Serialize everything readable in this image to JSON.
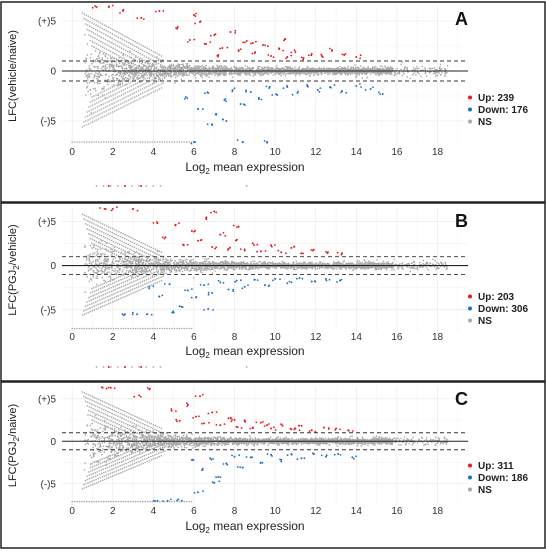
{
  "figure": {
    "panels": [
      {
        "letter": "A",
        "ylabel_main": "LFC(vehicle/naive)",
        "ylabel_sub": "",
        "ylabel_tail": "",
        "xlabel_main": "Log",
        "xlabel_sub": "2",
        "xlabel_tail": " mean expression",
        "legend": [
          {
            "label": "Up: 239",
            "color": "#e41a1c"
          },
          {
            "label": "Down: 176",
            "color": "#1f6fc5"
          },
          {
            "label": "NS",
            "color": "#a8a8a8"
          }
        ]
      },
      {
        "letter": "B",
        "ylabel_main": "LFC(PGJ",
        "ylabel_sub": "2",
        "ylabel_tail": "/vehicle)",
        "xlabel_main": "Log",
        "xlabel_sub": "2",
        "xlabel_tail": " mean expression",
        "legend": [
          {
            "label": "Up: 203",
            "color": "#e41a1c"
          },
          {
            "label": "Down: 306",
            "color": "#1f6fc5"
          },
          {
            "label": "NS",
            "color": "#a8a8a8"
          }
        ]
      },
      {
        "letter": "C",
        "ylabel_main": "LFC(PGJ",
        "ylabel_sub": "2",
        "ylabel_tail": "/naive)",
        "xlabel_main": "Log",
        "xlabel_sub": "2",
        "xlabel_tail": " mean expression",
        "legend": [
          {
            "label": "Up: 311",
            "color": "#e41a1c"
          },
          {
            "label": "Down: 186",
            "color": "#1f6fc5"
          },
          {
            "label": "NS",
            "color": "#a8a8a8"
          }
        ]
      }
    ]
  },
  "chart_data": [
    {
      "type": "scatter",
      "panel": "A",
      "xlabel": "Log2 mean expression",
      "ylabel": "LFC(vehicle/naive)",
      "x_ticks": [
        0,
        2,
        4,
        6,
        8,
        10,
        12,
        14,
        16,
        18
      ],
      "y_ticks": [
        "(-)5",
        "0",
        "(+)5"
      ],
      "xlim": [
        -0.5,
        19.5
      ],
      "ylim": [
        -7.5,
        6.5
      ],
      "threshold_lines": [
        1,
        -1
      ],
      "grid": true,
      "legend_position": "right",
      "counts": {
        "up": 239,
        "down": 176
      },
      "series": [
        {
          "name": "Up",
          "color": "#e41a1c",
          "points": [
            [
              5.2,
              4.4
            ],
            [
              5.8,
              3.1
            ],
            [
              6.3,
              4.9
            ],
            [
              6.6,
              2.7
            ],
            [
              7.0,
              3.6
            ],
            [
              7.4,
              2.3
            ],
            [
              7.8,
              3.9
            ],
            [
              8.2,
              2.0
            ],
            [
              8.6,
              3.0
            ],
            [
              9.0,
              1.8
            ],
            [
              9.4,
              2.6
            ],
            [
              9.8,
              1.5
            ],
            [
              10.2,
              2.2
            ],
            [
              10.6,
              1.4
            ],
            [
              11.0,
              1.9
            ],
            [
              11.4,
              1.3
            ],
            [
              11.8,
              1.7
            ],
            [
              12.3,
              1.5
            ],
            [
              12.8,
              2.1
            ],
            [
              13.4,
              1.6
            ],
            [
              14.0,
              1.4
            ],
            [
              3.4,
              5.3
            ],
            [
              4.3,
              6.0
            ],
            [
              6.0,
              5.6
            ],
            [
              1.8,
              6.4
            ],
            [
              2.5,
              6.0
            ],
            [
              1.2,
              6.4
            ],
            [
              8.9,
              2.8
            ],
            [
              10.5,
              3.2
            ],
            [
              7.2,
              1.6
            ]
          ]
        },
        {
          "name": "Down",
          "color": "#1f6fc5",
          "points": [
            [
              5.6,
              -2.6
            ],
            [
              6.2,
              -3.8
            ],
            [
              6.7,
              -2.2
            ],
            [
              7.1,
              -4.3
            ],
            [
              7.5,
              -2.9
            ],
            [
              7.9,
              -1.9
            ],
            [
              8.3,
              -3.3
            ],
            [
              8.8,
              -2.1
            ],
            [
              9.2,
              -2.8
            ],
            [
              9.7,
              -1.7
            ],
            [
              10.1,
              -2.4
            ],
            [
              10.6,
              -1.6
            ],
            [
              11.1,
              -2.2
            ],
            [
              11.6,
              -1.5
            ],
            [
              12.1,
              -1.9
            ],
            [
              12.7,
              -1.6
            ],
            [
              13.3,
              -2.0
            ],
            [
              14.0,
              -1.5
            ],
            [
              14.7,
              -1.8
            ],
            [
              15.3,
              -2.3
            ],
            [
              6.9,
              -5.4
            ],
            [
              7.6,
              -5.0
            ],
            [
              6.0,
              -7.1
            ],
            [
              8.4,
              -7.1
            ],
            [
              9.6,
              -7.1
            ]
          ]
        },
        {
          "name": "NS",
          "color": "#a8a8a8",
          "points": [
            [
              6.0,
              0.3
            ],
            [
              8.0,
              -0.2
            ],
            [
              10.0,
              0.1
            ],
            [
              12.0,
              -0.1
            ],
            [
              14.0,
              0.2
            ],
            [
              16.0,
              0.0
            ],
            [
              18.0,
              0.0
            ]
          ]
        }
      ]
    },
    {
      "type": "scatter",
      "panel": "B",
      "xlabel": "Log2 mean expression",
      "ylabel": "LFC(PGJ2/vehicle)",
      "x_ticks": [
        0,
        2,
        4,
        6,
        8,
        10,
        12,
        14,
        16,
        18
      ],
      "y_ticks": [
        "(-)5",
        "0",
        "(+)5"
      ],
      "xlim": [
        -0.5,
        19.5
      ],
      "ylim": [
        -7.5,
        6.5
      ],
      "threshold_lines": [
        1,
        -1
      ],
      "grid": true,
      "legend_position": "right",
      "counts": {
        "up": 203,
        "down": 306
      },
      "series": [
        {
          "name": "Up",
          "color": "#e41a1c",
          "points": [
            [
              4.6,
              3.2
            ],
            [
              5.1,
              4.6
            ],
            [
              5.5,
              2.3
            ],
            [
              5.9,
              3.9
            ],
            [
              6.2,
              2.8
            ],
            [
              6.6,
              5.4
            ],
            [
              6.9,
              2.1
            ],
            [
              7.3,
              3.5
            ],
            [
              7.7,
              1.9
            ],
            [
              8.1,
              2.9
            ],
            [
              8.5,
              1.7
            ],
            [
              8.9,
              2.5
            ],
            [
              9.3,
              1.6
            ],
            [
              9.8,
              2.3
            ],
            [
              10.3,
              1.5
            ],
            [
              10.8,
              2.0
            ],
            [
              11.3,
              1.4
            ],
            [
              11.9,
              1.8
            ],
            [
              12.6,
              1.5
            ],
            [
              13.3,
              1.4
            ],
            [
              4.2,
              4.8
            ],
            [
              7.0,
              6.1
            ],
            [
              8.2,
              4.4
            ],
            [
              2.0,
              6.4
            ],
            [
              1.6,
              6.4
            ],
            [
              3.0,
              6.4
            ]
          ]
        },
        {
          "name": "Down",
          "color": "#1f6fc5",
          "points": [
            [
              3.8,
              -2.4
            ],
            [
              4.3,
              -3.5
            ],
            [
              4.8,
              -2.1
            ],
            [
              5.3,
              -4.6
            ],
            [
              5.7,
              -2.8
            ],
            [
              6.1,
              -3.6
            ],
            [
              6.5,
              -2.2
            ],
            [
              6.9,
              -3.1
            ],
            [
              7.3,
              -1.9
            ],
            [
              7.7,
              -2.7
            ],
            [
              8.1,
              -1.7
            ],
            [
              8.5,
              -2.4
            ],
            [
              9.0,
              -1.6
            ],
            [
              9.5,
              -2.2
            ],
            [
              10.0,
              -1.5
            ],
            [
              10.6,
              -2.0
            ],
            [
              11.2,
              -1.4
            ],
            [
              11.8,
              -1.8
            ],
            [
              12.5,
              -1.5
            ],
            [
              13.2,
              -1.7
            ],
            [
              5.0,
              -5.3
            ],
            [
              6.7,
              -4.9
            ],
            [
              2.6,
              -5.5
            ],
            [
              3.2,
              -5.5
            ],
            [
              3.7,
              -5.5
            ]
          ]
        },
        {
          "name": "NS",
          "color": "#a8a8a8",
          "points": [
            [
              6.0,
              0.3
            ],
            [
              8.0,
              -0.2
            ],
            [
              10.0,
              0.1
            ],
            [
              12.0,
              -0.1
            ],
            [
              14.0,
              0.2
            ],
            [
              16.0,
              0.0
            ],
            [
              18.0,
              0.0
            ]
          ]
        }
      ]
    },
    {
      "type": "scatter",
      "panel": "C",
      "xlabel": "Log2 mean expression",
      "ylabel": "LFC(PGJ2/naive)",
      "x_ticks": [
        0,
        2,
        4,
        6,
        8,
        10,
        12,
        14,
        16,
        18
      ],
      "y_ticks": [
        "(-)5",
        "0",
        "(+)5"
      ],
      "xlim": [
        -0.5,
        19.5
      ],
      "ylim": [
        -7.5,
        6.5
      ],
      "threshold_lines": [
        1,
        -1
      ],
      "grid": true,
      "legend_position": "right",
      "counts": {
        "up": 311,
        "down": 186
      },
      "series": [
        {
          "name": "Up",
          "color": "#e41a1c",
          "points": [
            [
              4.9,
              3.6
            ],
            [
              5.3,
              2.4
            ],
            [
              5.7,
              4.3
            ],
            [
              6.1,
              2.9
            ],
            [
              6.5,
              2.1
            ],
            [
              6.9,
              3.4
            ],
            [
              7.3,
              1.9
            ],
            [
              7.7,
              2.7
            ],
            [
              8.1,
              1.7
            ],
            [
              8.5,
              2.4
            ],
            [
              8.9,
              1.6
            ],
            [
              9.3,
              2.2
            ],
            [
              9.8,
              1.5
            ],
            [
              10.3,
              2.0
            ],
            [
              10.8,
              1.4
            ],
            [
              11.3,
              1.8
            ],
            [
              11.8,
              1.3
            ],
            [
              12.4,
              1.6
            ],
            [
              13.0,
              1.5
            ],
            [
              13.6,
              1.3
            ],
            [
              3.3,
              5.4
            ],
            [
              3.8,
              6.1
            ],
            [
              6.3,
              5.3
            ],
            [
              1.5,
              6.3
            ],
            [
              1.9,
              6.3
            ],
            [
              8.0,
              2.5
            ],
            [
              9.6,
              1.9
            ],
            [
              11.0,
              1.5
            ]
          ]
        },
        {
          "name": "Down",
          "color": "#1f6fc5",
          "points": [
            [
              5.9,
              -2.2
            ],
            [
              6.4,
              -3.4
            ],
            [
              6.8,
              -2.0
            ],
            [
              7.2,
              -4.2
            ],
            [
              7.6,
              -2.6
            ],
            [
              8.0,
              -1.8
            ],
            [
              8.4,
              -3.1
            ],
            [
              8.8,
              -1.9
            ],
            [
              9.3,
              -2.5
            ],
            [
              9.8,
              -1.6
            ],
            [
              10.3,
              -2.2
            ],
            [
              10.8,
              -1.5
            ],
            [
              11.3,
              -2.0
            ],
            [
              11.9,
              -1.5
            ],
            [
              12.5,
              -1.8
            ],
            [
              13.1,
              -1.5
            ],
            [
              13.8,
              -1.9
            ],
            [
              7.0,
              -4.9
            ],
            [
              6.2,
              -6.0
            ],
            [
              5.4,
              -7.0
            ],
            [
              4.7,
              -7.0
            ],
            [
              4.2,
              -7.0
            ]
          ]
        },
        {
          "name": "NS",
          "color": "#a8a8a8",
          "points": [
            [
              6.0,
              0.3
            ],
            [
              8.0,
              -0.2
            ],
            [
              10.0,
              0.1
            ],
            [
              12.0,
              -0.1
            ],
            [
              14.0,
              0.2
            ],
            [
              16.0,
              0.0
            ],
            [
              18.0,
              0.0
            ]
          ]
        }
      ]
    }
  ]
}
